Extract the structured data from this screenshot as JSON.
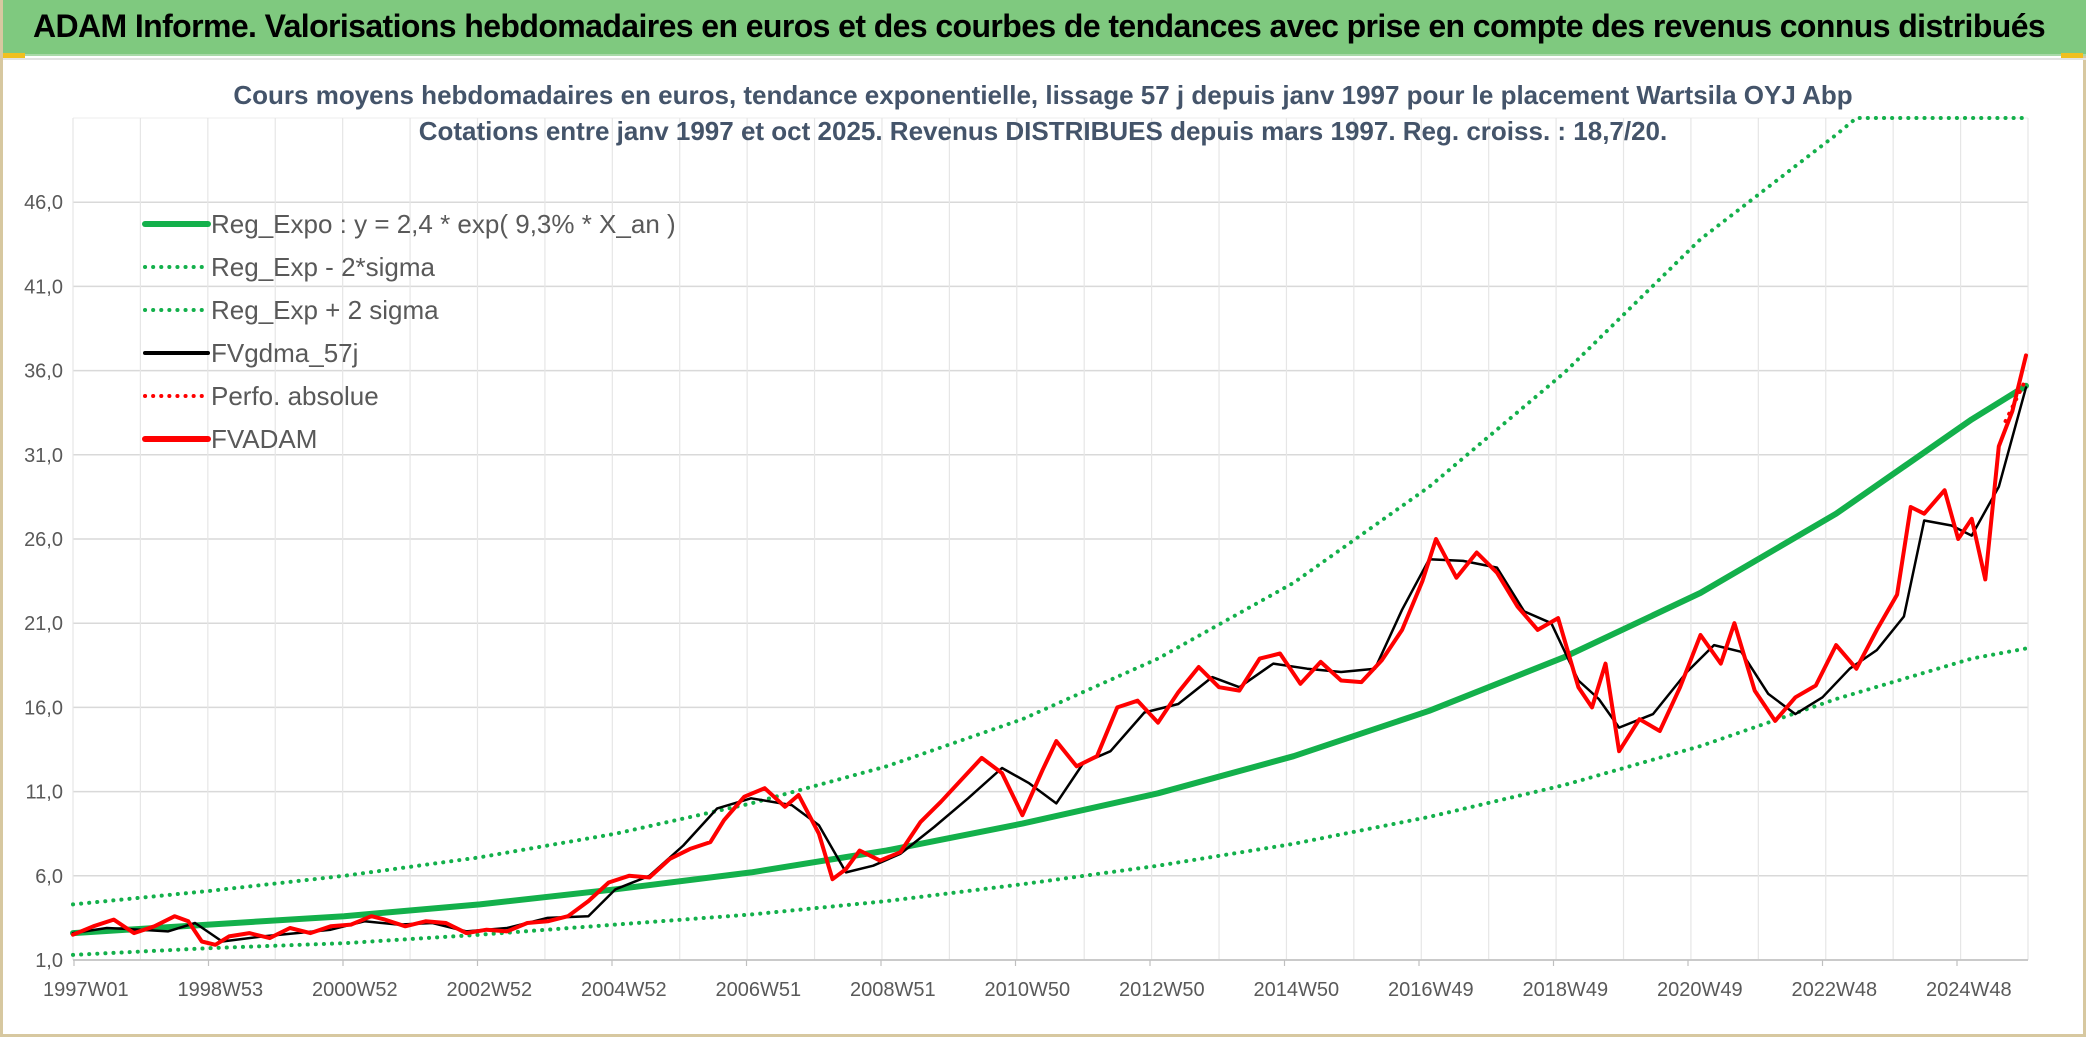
{
  "header": {
    "title": "ADAM Informe. Valorisations hebdomadaires en euros et des courbes de tendances avec prise en compte des revenus connus distribués"
  },
  "colors": {
    "banner": "#7fc97f",
    "trend_green": "#13b04b",
    "adam_red": "#ff0000",
    "gdma_black": "#000000",
    "grid": "#d9d9d9"
  },
  "chart_data": {
    "type": "line",
    "title": [
      "Cours moyens hebdomadaires en euros, tendance exponentielle, lissage 57 j depuis janv 1997 pour le placement Wartsila OYJ Abp",
      "Cotations entre janv 1997 et oct 2025. Revenus DISTRIBUES depuis mars 1997. Reg. croiss. : 18,7/20."
    ],
    "x_tick_labels": [
      "1997W01",
      "1998W53",
      "2000W52",
      "2002W52",
      "2004W52",
      "2006W51",
      "2008W51",
      "2010W50",
      "2012W50",
      "2014W50",
      "2016W49",
      "2018W49",
      "2020W49",
      "2022W48",
      "2024W48"
    ],
    "y_tick_labels": [
      "1,0",
      "6,0",
      "11,0",
      "16,0",
      "21,0",
      "26,0",
      "31,0",
      "36,0",
      "41,0",
      "46,0"
    ],
    "ylim": [
      1,
      51
    ],
    "y_ticks": [
      1,
      6,
      11,
      16,
      21,
      26,
      31,
      36,
      41,
      46
    ],
    "xlim": [
      1997.0,
      2025.83
    ],
    "legend_position": "top-left",
    "grid": true,
    "series": [
      {
        "name": "Reg_Expo : y = 2,4 * exp( 9,3% *  X_an )",
        "style": "solid-thick",
        "color": "#13b04b",
        "x": [
          1997,
          1999,
          2001,
          2003,
          2005,
          2007,
          2009,
          2011,
          2013,
          2015,
          2017,
          2019,
          2021,
          2023,
          2025,
          2025.8
        ],
        "y": [
          2.6,
          3.1,
          3.6,
          4.3,
          5.2,
          6.2,
          7.5,
          9.1,
          10.9,
          13.1,
          15.8,
          19.0,
          22.8,
          27.5,
          33.1,
          35.1
        ]
      },
      {
        "name": "Reg_Exp - 2*sigma",
        "style": "dotted",
        "color": "#13b04b",
        "x": [
          1997,
          1999,
          2001,
          2003,
          2005,
          2007,
          2009,
          2011,
          2013,
          2015,
          2017,
          2019,
          2021,
          2023,
          2025,
          2025.8
        ],
        "y": [
          1.3,
          1.7,
          2.0,
          2.5,
          3.1,
          3.7,
          4.5,
          5.5,
          6.6,
          7.9,
          9.5,
          11.4,
          13.7,
          16.5,
          18.9,
          19.5
        ]
      },
      {
        "name": "Reg_Exp + 2 sigma",
        "style": "dotted",
        "color": "#13b04b",
        "x": [
          1997,
          1999,
          2001,
          2003,
          2005,
          2007,
          2009,
          2011,
          2013,
          2015,
          2017,
          2019,
          2021,
          2023,
          2023.3,
          2025.8
        ],
        "y": [
          4.3,
          5.1,
          6.0,
          7.1,
          8.5,
          10.3,
          12.5,
          15.3,
          18.9,
          23.4,
          29.1,
          35.9,
          43.8,
          50.0,
          51.0,
          51.0
        ]
      },
      {
        "name": "FVgdma_57j",
        "style": "solid",
        "color": "#000000",
        "x": [
          1997.0,
          1997.5,
          1998.0,
          1998.4,
          1998.8,
          1999.2,
          1999.8,
          2000.3,
          2000.8,
          2001.3,
          2001.8,
          2002.3,
          2002.8,
          2003.4,
          2004.0,
          2004.6,
          2005.0,
          2005.5,
          2006.0,
          2006.5,
          2007.0,
          2007.6,
          2008.0,
          2008.4,
          2008.8,
          2009.2,
          2009.7,
          2010.2,
          2010.7,
          2011.1,
          2011.5,
          2011.9,
          2012.3,
          2012.8,
          2013.3,
          2013.8,
          2014.2,
          2014.7,
          2015.2,
          2015.7,
          2016.2,
          2016.6,
          2017.0,
          2017.5,
          2018.0,
          2018.4,
          2018.8,
          2019.2,
          2019.5,
          2019.8,
          2020.3,
          2020.8,
          2021.2,
          2021.6,
          2022.0,
          2022.4,
          2022.8,
          2023.2,
          2023.6,
          2024.0,
          2024.3,
          2024.7,
          2025.0,
          2025.4,
          2025.8
        ],
        "y": [
          2.6,
          2.9,
          2.8,
          2.7,
          3.2,
          2.1,
          2.4,
          2.6,
          2.8,
          3.3,
          3.1,
          3.2,
          2.7,
          2.9,
          3.5,
          3.6,
          5.2,
          6.0,
          7.8,
          10.0,
          10.6,
          10.2,
          9.0,
          6.2,
          6.6,
          7.3,
          8.9,
          10.6,
          12.4,
          11.5,
          10.3,
          12.7,
          13.4,
          15.7,
          16.2,
          17.8,
          17.2,
          18.6,
          18.3,
          18.1,
          18.3,
          21.8,
          24.8,
          24.7,
          24.3,
          21.7,
          21.0,
          17.6,
          16.5,
          14.8,
          15.6,
          18.1,
          19.7,
          19.3,
          16.8,
          15.6,
          16.6,
          18.3,
          19.4,
          21.4,
          27.1,
          26.8,
          26.2,
          29.1,
          35.0
        ]
      },
      {
        "name": "Perfo. absolue",
        "style": "dotted",
        "color": "#ff0000",
        "x": [
          2025.5,
          2025.8
        ],
        "y": [
          33.0,
          35.5
        ]
      },
      {
        "name": "FVADAM",
        "style": "solid-thick",
        "color": "#ff0000",
        "x": [
          1997.0,
          1997.3,
          1997.6,
          1997.9,
          1998.2,
          1998.5,
          1998.7,
          1998.9,
          1999.1,
          1999.3,
          1999.6,
          1999.9,
          2000.2,
          2000.5,
          2000.8,
          2001.1,
          2001.4,
          2001.6,
          2001.9,
          2002.2,
          2002.5,
          2002.8,
          2003.1,
          2003.4,
          2003.7,
          2004.0,
          2004.3,
          2004.6,
          2004.9,
          2005.2,
          2005.5,
          2005.8,
          2006.1,
          2006.4,
          2006.6,
          2006.9,
          2007.2,
          2007.5,
          2007.7,
          2008.0,
          2008.2,
          2008.4,
          2008.6,
          2008.9,
          2009.2,
          2009.5,
          2009.8,
          2010.1,
          2010.4,
          2010.7,
          2011.0,
          2011.3,
          2011.5,
          2011.8,
          2012.1,
          2012.4,
          2012.7,
          2013.0,
          2013.3,
          2013.6,
          2013.9,
          2014.2,
          2014.5,
          2014.8,
          2015.1,
          2015.4,
          2015.7,
          2016.0,
          2016.3,
          2016.6,
          2016.9,
          2017.1,
          2017.4,
          2017.7,
          2018.0,
          2018.3,
          2018.6,
          2018.9,
          2019.2,
          2019.4,
          2019.6,
          2019.8,
          2020.1,
          2020.4,
          2020.7,
          2021.0,
          2021.3,
          2021.5,
          2021.8,
          2022.1,
          2022.4,
          2022.7,
          2023.0,
          2023.3,
          2023.6,
          2023.9,
          2024.1,
          2024.3,
          2024.6,
          2024.8,
          2025.0,
          2025.2,
          2025.4,
          2025.6,
          2025.8
        ],
        "y": [
          2.5,
          3.0,
          3.4,
          2.6,
          3.0,
          3.6,
          3.3,
          2.1,
          1.9,
          2.4,
          2.6,
          2.3,
          2.9,
          2.6,
          3.0,
          3.1,
          3.6,
          3.4,
          3.0,
          3.3,
          3.2,
          2.6,
          2.8,
          2.7,
          3.2,
          3.3,
          3.6,
          4.5,
          5.6,
          6.0,
          5.9,
          7.0,
          7.6,
          8.0,
          9.3,
          10.7,
          11.2,
          10.1,
          10.8,
          8.5,
          5.8,
          6.4,
          7.5,
          6.9,
          7.4,
          9.2,
          10.4,
          11.7,
          13.0,
          12.1,
          9.6,
          12.3,
          14.0,
          12.5,
          13.1,
          16.0,
          16.4,
          15.1,
          16.9,
          18.4,
          17.2,
          17.0,
          18.9,
          19.2,
          17.4,
          18.7,
          17.6,
          17.5,
          18.8,
          20.6,
          23.5,
          26.0,
          23.7,
          25.2,
          24.0,
          22.0,
          20.6,
          21.3,
          17.2,
          16.0,
          18.6,
          13.4,
          15.3,
          14.6,
          17.2,
          20.3,
          18.6,
          21.0,
          17.0,
          15.2,
          16.6,
          17.3,
          19.7,
          18.3,
          20.6,
          22.7,
          27.9,
          27.5,
          28.9,
          26.0,
          27.2,
          23.6,
          31.5,
          33.6,
          36.9
        ]
      }
    ]
  }
}
